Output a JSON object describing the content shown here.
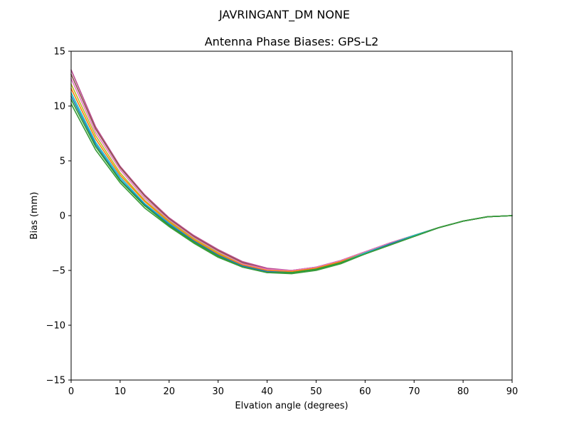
{
  "chart_data": {
    "type": "line",
    "suptitle": "JAVRINGANT_DM   NONE",
    "title": "Antenna Phase Biases: GPS-L2",
    "xlabel": "Elvation angle (degrees)",
    "ylabel": "Bias (mm)",
    "xlim": [
      0,
      90
    ],
    "ylim": [
      -15,
      15
    ],
    "xticks": [
      0,
      10,
      20,
      30,
      40,
      50,
      60,
      70,
      80,
      90
    ],
    "yticks": [
      -15,
      -10,
      -5,
      0,
      5,
      10,
      15
    ],
    "grid": false,
    "legend": "none",
    "x": [
      0,
      5,
      10,
      15,
      20,
      25,
      30,
      35,
      40,
      45,
      50,
      55,
      60,
      65,
      70,
      75,
      80,
      85,
      90
    ],
    "series": [
      {
        "color": "#ba4a8f",
        "values": [
          13.3,
          8.1,
          4.5,
          1.9,
          -0.2,
          -1.8,
          -3.1,
          -4.2,
          -4.8,
          -5.0,
          -4.7,
          -4.1,
          -3.3,
          -2.5,
          -1.8,
          -1.1,
          -0.5,
          -0.1,
          0.0
        ]
      },
      {
        "color": "#8c564b",
        "values": [
          12.9,
          7.9,
          4.4,
          1.8,
          -0.3,
          -1.9,
          -3.2,
          -4.3,
          -4.9,
          -5.0,
          -4.7,
          -4.1,
          -3.3,
          -2.5,
          -1.8,
          -1.1,
          -0.5,
          -0.1,
          0.0
        ]
      },
      {
        "color": "#e377c2",
        "values": [
          12.5,
          7.6,
          4.2,
          1.6,
          -0.4,
          -2.0,
          -3.3,
          -4.4,
          -4.9,
          -5.0,
          -4.7,
          -4.1,
          -3.3,
          -2.5,
          -1.8,
          -1.1,
          -0.5,
          -0.1,
          0.0
        ]
      },
      {
        "color": "#bcbd22",
        "values": [
          12.0,
          7.3,
          3.9,
          1.4,
          -0.5,
          -2.1,
          -3.4,
          -4.5,
          -5.0,
          -5.1,
          -4.8,
          -4.2,
          -3.4,
          -2.6,
          -1.8,
          -1.1,
          -0.5,
          -0.1,
          0.0
        ]
      },
      {
        "color": "#ff7f0e",
        "values": [
          11.6,
          7.0,
          3.7,
          1.3,
          -0.6,
          -2.2,
          -3.5,
          -4.5,
          -5.0,
          -5.1,
          -4.8,
          -4.2,
          -3.4,
          -2.6,
          -1.8,
          -1.1,
          -0.5,
          -0.1,
          0.0
        ]
      },
      {
        "color": "#17becf",
        "values": [
          11.2,
          6.7,
          3.5,
          1.1,
          -0.7,
          -2.3,
          -3.6,
          -4.6,
          -5.1,
          -5.2,
          -4.9,
          -4.3,
          -3.4,
          -2.6,
          -1.8,
          -1.1,
          -0.5,
          -0.1,
          0.0
        ]
      },
      {
        "color": "#1f77b4",
        "values": [
          10.9,
          6.5,
          3.3,
          1.0,
          -0.8,
          -2.3,
          -3.6,
          -4.6,
          -5.1,
          -5.2,
          -4.9,
          -4.3,
          -3.5,
          -2.6,
          -1.9,
          -1.1,
          -0.5,
          -0.1,
          0.0
        ]
      },
      {
        "color": "#2ca02c",
        "values": [
          10.6,
          6.3,
          3.2,
          0.9,
          -0.9,
          -2.4,
          -3.7,
          -4.7,
          -5.2,
          -5.2,
          -4.9,
          -4.3,
          -3.5,
          -2.7,
          -1.9,
          -1.1,
          -0.5,
          -0.1,
          0.0
        ]
      },
      {
        "color": "#3a9a3a",
        "values": [
          10.2,
          6.0,
          3.0,
          0.7,
          -1.0,
          -2.5,
          -3.8,
          -4.7,
          -5.2,
          -5.3,
          -5.0,
          -4.4,
          -3.5,
          -2.7,
          -1.9,
          -1.1,
          -0.5,
          -0.1,
          0.0
        ]
      }
    ]
  }
}
